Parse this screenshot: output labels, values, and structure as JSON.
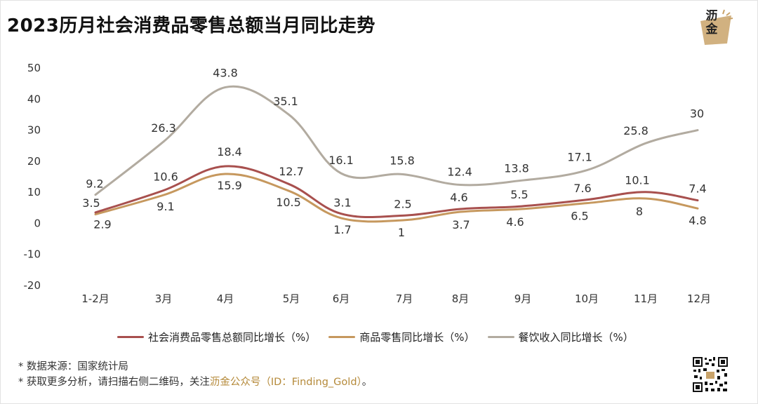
{
  "title": "2023历月社会消费品零售总额当月同比走势",
  "logo": {
    "text": "沥金",
    "icon": "gold-ingot-logo-icon"
  },
  "legend": [
    {
      "label": "社会消费品零售总额同比增长（%）",
      "color": "#a8504e"
    },
    {
      "label": "商品零售同比增长（%）",
      "color": "#c6985e"
    },
    {
      "label": "餐饮收入同比增长（%）",
      "color": "#b2aba0"
    }
  ],
  "notes": {
    "line1": "*  数据来源：国家统计局",
    "line2_prefix": "*  获取更多分析，请扫描右侧二维码，关注",
    "line2_highlight": "沥金公众号（ID：Finding_Gold）",
    "line2_suffix": "。"
  },
  "chart_data": {
    "type": "line",
    "title": "2023历月社会消费品零售总额当月同比走势",
    "categories": [
      "1-2月",
      "3月",
      "4月",
      "5月",
      "6月",
      "7月",
      "8月",
      "9月",
      "10月",
      "11月",
      "12月"
    ],
    "ylim": [
      -20,
      50
    ],
    "yticks": [
      50,
      40,
      30,
      20,
      10,
      0,
      -10,
      -20
    ],
    "series": [
      {
        "name": "社会消费品零售总额同比增长（%）",
        "color": "#a8504e",
        "values": [
          3.5,
          10.6,
          18.4,
          12.7,
          3.1,
          2.5,
          4.6,
          5.5,
          7.6,
          10.1,
          7.4
        ]
      },
      {
        "name": "商品零售同比增长（%）",
        "color": "#c6985e",
        "values": [
          2.9,
          9.1,
          15.9,
          10.5,
          1.7,
          1,
          3.7,
          4.6,
          6.5,
          8,
          4.8
        ]
      },
      {
        "name": "餐饮收入同比增长（%）",
        "color": "#b2aba0",
        "values": [
          9.2,
          26.3,
          43.8,
          35.1,
          16.1,
          15.8,
          12.4,
          13.8,
          17.1,
          25.8,
          30
        ]
      }
    ]
  }
}
